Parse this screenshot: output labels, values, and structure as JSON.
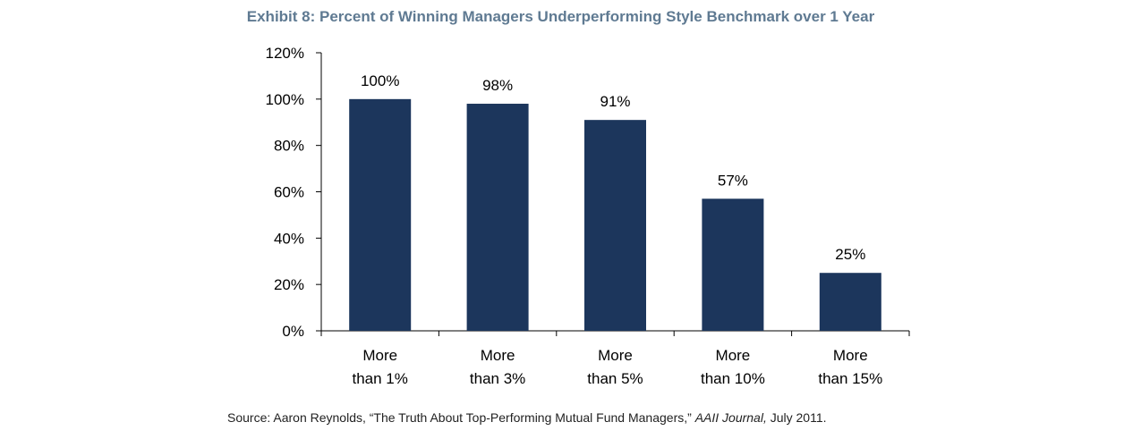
{
  "title": "Exhibit 8: Percent of Winning Managers Underperforming Style Benchmark over 1 Year",
  "source": {
    "prefix": "Source: Aaron Reynolds, “The Truth About Top-Performing Mutual Fund Managers,” ",
    "journal": "AAII Journal,",
    "suffix": " July 2011."
  },
  "colors": {
    "bar": "#1c365c",
    "title": "#5f7a92",
    "axis": "#000000"
  },
  "chart_data": {
    "type": "bar",
    "title": "Exhibit 8: Percent of Winning Managers Underperforming Style Benchmark over 1 Year",
    "xlabel": "",
    "ylabel": "",
    "categories": [
      [
        "More",
        "than 1%"
      ],
      [
        "More",
        "than 3%"
      ],
      [
        "More",
        "than 5%"
      ],
      [
        "More",
        "than 10%"
      ],
      [
        "More",
        "than 15%"
      ]
    ],
    "values": [
      100,
      98,
      91,
      57,
      25
    ],
    "data_labels": [
      "100%",
      "98%",
      "91%",
      "57%",
      "25%"
    ],
    "ylim": [
      0,
      120
    ],
    "yticks": [
      0,
      20,
      40,
      60,
      80,
      100,
      120
    ],
    "ytick_labels": [
      "0%",
      "20%",
      "40%",
      "60%",
      "80%",
      "100%",
      "120%"
    ],
    "grid": false,
    "legend": "none"
  }
}
